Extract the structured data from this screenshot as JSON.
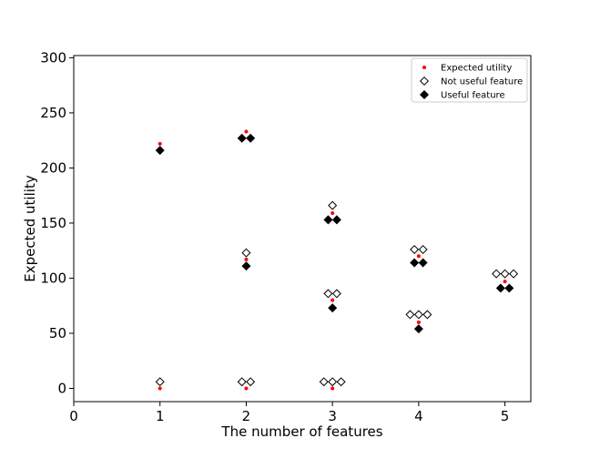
{
  "chart_data": {
    "type": "scatter",
    "xlabel": "The number of features",
    "ylabel": "Expected utility",
    "xlim": [
      0,
      5.3
    ],
    "ylim": [
      -12,
      302
    ],
    "xticks": [
      0,
      1,
      2,
      3,
      4,
      5
    ],
    "yticks": [
      0,
      50,
      100,
      150,
      200,
      250,
      300
    ],
    "grid": false,
    "legend_position": "top-right",
    "series": [
      {
        "name": "Expected utility",
        "marker": "dot",
        "color": "#ff0000",
        "points": [
          {
            "x": 1,
            "y": 222
          },
          {
            "x": 1,
            "y": 0
          },
          {
            "x": 2,
            "y": 233
          },
          {
            "x": 2,
            "y": 117
          },
          {
            "x": 2,
            "y": 0
          },
          {
            "x": 3,
            "y": 159
          },
          {
            "x": 3,
            "y": 80
          },
          {
            "x": 3,
            "y": 0
          },
          {
            "x": 4,
            "y": 120
          },
          {
            "x": 4,
            "y": 60
          },
          {
            "x": 5,
            "y": 97
          }
        ]
      },
      {
        "name": "Not useful feature",
        "marker": "open-diamond",
        "color": "#000000",
        "points": [
          {
            "x": 1,
            "y": 6
          },
          {
            "x": 2,
            "y": 123
          },
          {
            "x": 1.95,
            "y": 6
          },
          {
            "x": 2.05,
            "y": 6
          },
          {
            "x": 3,
            "y": 166
          },
          {
            "x": 2.95,
            "y": 86
          },
          {
            "x": 3.05,
            "y": 86
          },
          {
            "x": 2.9,
            "y": 6
          },
          {
            "x": 3,
            "y": 6
          },
          {
            "x": 3.1,
            "y": 6
          },
          {
            "x": 3.95,
            "y": 126
          },
          {
            "x": 4.05,
            "y": 126
          },
          {
            "x": 3.9,
            "y": 67
          },
          {
            "x": 4,
            "y": 67
          },
          {
            "x": 4.1,
            "y": 67
          },
          {
            "x": 4.9,
            "y": 104
          },
          {
            "x": 5,
            "y": 104
          },
          {
            "x": 5.1,
            "y": 104
          }
        ]
      },
      {
        "name": "Useful feature",
        "marker": "filled-diamond",
        "color": "#000000",
        "points": [
          {
            "x": 1,
            "y": 216
          },
          {
            "x": 1.95,
            "y": 227
          },
          {
            "x": 2.05,
            "y": 227
          },
          {
            "x": 2,
            "y": 111
          },
          {
            "x": 2.95,
            "y": 153
          },
          {
            "x": 3.05,
            "y": 153
          },
          {
            "x": 3,
            "y": 73
          },
          {
            "x": 3.95,
            "y": 114
          },
          {
            "x": 4.05,
            "y": 114
          },
          {
            "x": 4,
            "y": 54
          },
          {
            "x": 4.95,
            "y": 91
          },
          {
            "x": 5.05,
            "y": 91
          }
        ]
      }
    ]
  }
}
